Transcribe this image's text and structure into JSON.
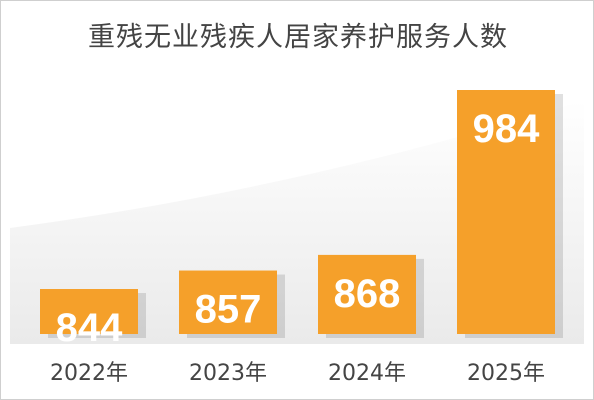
{
  "chart_data": {
    "type": "bar",
    "title": "重残无业残疾人居家养护服务人数",
    "categories": [
      "2022年",
      "2023年",
      "2024年",
      "2025年"
    ],
    "values": [
      844,
      857,
      868,
      984
    ],
    "data_labels": [
      "844",
      "857",
      "868",
      "984"
    ],
    "xlabel": "",
    "ylabel": "",
    "grid": false,
    "legend": "none",
    "colors": {
      "bar": "#f5a02a",
      "label_text": "#ffffff",
      "tick_text": "#444444",
      "title_text": "#444444"
    }
  }
}
